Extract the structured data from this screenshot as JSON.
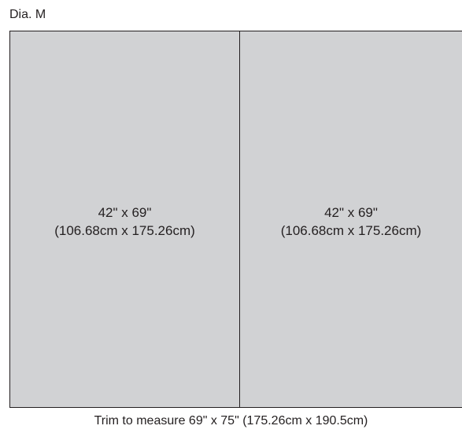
{
  "diagram_label": "Dia. M",
  "panels": [
    {
      "size_in": "42\" x 69\"",
      "size_cm": "(106.68cm x 175.26cm)"
    },
    {
      "size_in": "42\" x 69\"",
      "size_cm": "(106.68cm x 175.26cm)"
    }
  ],
  "caption": "Trim to measure 69\" x 75\" (175.26cm x 190.5cm)",
  "colors": {
    "panel_fill": "#d1d2d4",
    "line": "#231f20",
    "background": "#ffffff"
  }
}
